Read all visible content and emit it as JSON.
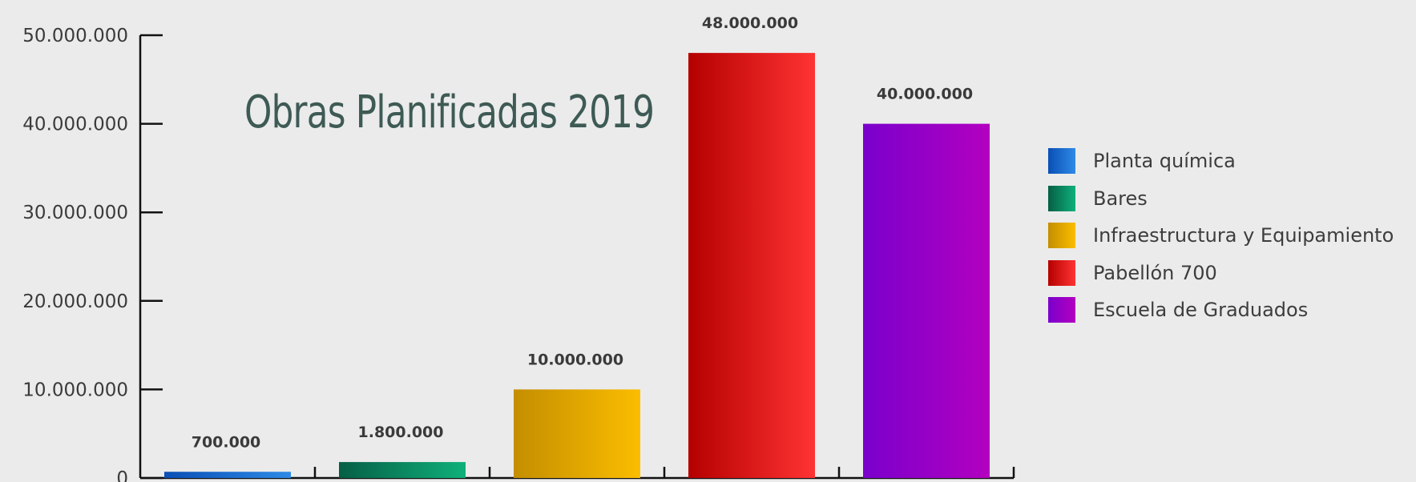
{
  "chart_data": {
    "type": "bar",
    "title": "Obras Planificadas 2019",
    "categories": [
      "Planta química",
      "Bares",
      "Infraestructura y Equipamiento",
      "Pabellón 700",
      "Escuela de Graduados"
    ],
    "values": [
      700000,
      1800000,
      10000000,
      48000000,
      40000000
    ],
    "value_labels": [
      "700.000",
      "1.800.000",
      "10.000.000",
      "48.000.000",
      "40.000.000"
    ],
    "ylim": [
      0,
      50000000
    ],
    "yticks": [
      0,
      10000000,
      20000000,
      30000000,
      40000000,
      50000000
    ],
    "ytick_labels": [
      "0",
      "10.000.000",
      "20.000.000",
      "30.000.000",
      "40.000.000",
      "50.000.000"
    ],
    "xlabel": "",
    "ylabel": "",
    "grid": false,
    "legend_position": "right",
    "colors": [
      [
        "#0a4fb5",
        "#2e8ae6"
      ],
      [
        "#065f45",
        "#0fb07a"
      ],
      [
        "#c48e00",
        "#fbbd00"
      ],
      [
        "#b50000",
        "#ff3333"
      ],
      [
        "#7a00cc",
        "#b300c0"
      ]
    ]
  }
}
